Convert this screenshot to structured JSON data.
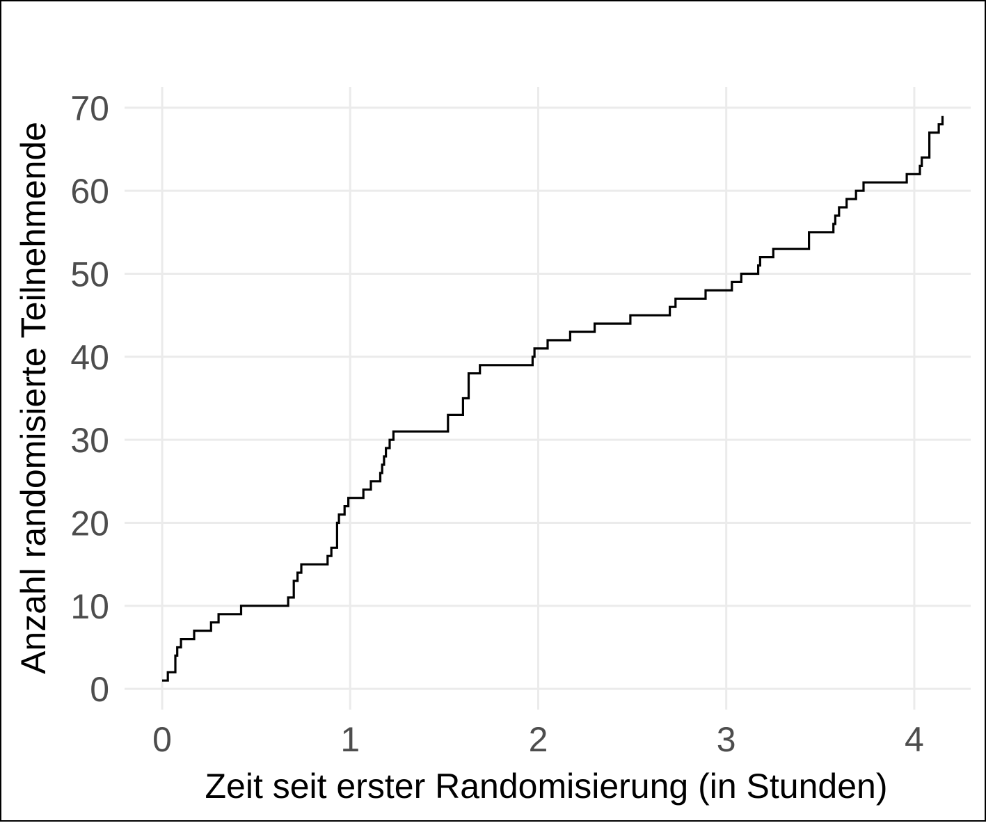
{
  "chart_data": {
    "type": "line",
    "step": true,
    "xlabel": "Zeit seit erster Randomisierung (in Stunden)",
    "ylabel": "Anzahl randomisierte Teilnehmende",
    "xlim": [
      -0.2,
      4.3
    ],
    "ylim": [
      -2.5,
      72.5
    ],
    "xticks": [
      0,
      1,
      2,
      3,
      4
    ],
    "yticks": [
      0,
      10,
      20,
      30,
      40,
      50,
      60,
      70
    ],
    "xtick_labels": [
      "0",
      "1",
      "2",
      "3",
      "4"
    ],
    "ytick_labels": [
      "0",
      "10",
      "20",
      "30",
      "40",
      "50",
      "60",
      "70"
    ],
    "grid": true,
    "line_color": "#000000",
    "series": [
      {
        "x": [
          0,
          0.03,
          0.07,
          0.08,
          0.1,
          0.17,
          0.26,
          0.3,
          0.42,
          0.67,
          0.7,
          0.72,
          0.74,
          0.88,
          0.9,
          0.93,
          0.94,
          0.97,
          0.99,
          1.07,
          1.11,
          1.16,
          1.17,
          1.18,
          1.19,
          1.21,
          1.23,
          1.52,
          1.6,
          1.63,
          1.69,
          1.97,
          1.98,
          2.05,
          2.17,
          2.3,
          2.49,
          2.7,
          2.73,
          2.89,
          3.03,
          3.08,
          3.17,
          3.18,
          3.25,
          3.44,
          3.57,
          3.58,
          3.6,
          3.64,
          3.69,
          3.73,
          3.96,
          4.03,
          4.04,
          4.08,
          4.13,
          4.15
        ],
        "y": [
          1,
          2,
          4,
          5,
          6,
          7,
          8,
          9,
          10,
          11,
          13,
          14,
          15,
          16,
          17,
          20,
          21,
          22,
          23,
          24,
          25,
          26,
          27,
          28,
          29,
          30,
          31,
          33,
          35,
          38,
          39,
          40,
          41,
          42,
          43,
          44,
          45,
          46,
          47,
          48,
          49,
          50,
          51,
          52,
          53,
          55,
          56,
          57,
          58,
          59,
          60,
          61,
          62,
          63,
          64,
          67,
          68,
          69
        ]
      }
    ]
  }
}
